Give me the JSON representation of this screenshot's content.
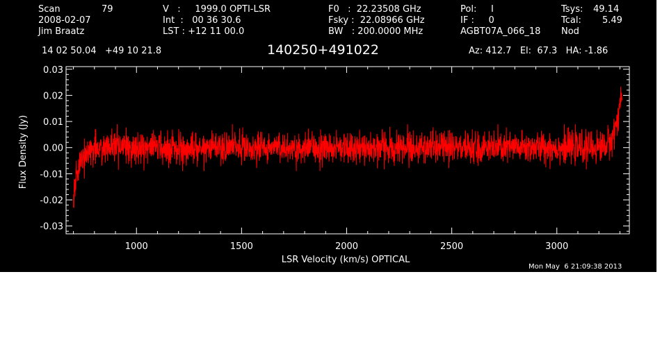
{
  "header": {
    "scan_label": "Scan",
    "scan_number": "79",
    "date": "2008-02-07",
    "observer": "Jim Braatz",
    "velocity_line": "V   :     1999.0 OPTI-LSR",
    "int_line": "Int  :   00 36 30.6",
    "lst_line": "LST : +12 11 00.0",
    "f0_line": "F0   :  22.23508 GHz",
    "fsky_line": "Fsky :  22.08966 GHz",
    "bw_line": "BW   : 200.0000 MHz",
    "pol_line": "Pol:     I",
    "if_line": "IF :     0",
    "project": "AGBT07A_066_18",
    "tsys_label": "Tsys:",
    "tsys_value": "49.14",
    "tcal_label": "Tcal:",
    "tcal_value": "5.49",
    "mode": "Nod",
    "ra_dec": "14 02 50.04   +49 10 21.8",
    "source": "140250+491022",
    "pointing": "Az: 412.7   El:  67.3   HA: -1.86"
  },
  "footer": {
    "timestamp": "Mon May  6 21:09:38 2013"
  },
  "colors": {
    "background": "#000000",
    "axes": "#ffffff",
    "spectrum": "#ff0000"
  },
  "chart_data": {
    "type": "line",
    "title": "140250+491022",
    "xlabel": "LSR Velocity (km/s) OPTICAL",
    "ylabel": "Flux Density (Jy)",
    "xlim": [
      665,
      3345
    ],
    "ylim": [
      -0.033,
      0.031
    ],
    "xticks": [
      1000,
      1500,
      2000,
      2500,
      3000
    ],
    "xtick_labels": [
      "1000",
      "1500",
      "2000",
      "2500",
      "3000"
    ],
    "yticks": [
      -0.03,
      -0.02,
      -0.01,
      0.0,
      0.01,
      0.02,
      0.03
    ],
    "ytick_labels": [
      "-0.03",
      "-0.02",
      "-0.01",
      "0.00",
      "0.01",
      "0.02",
      "0.03"
    ],
    "grid": false,
    "series": [
      {
        "color": "#ff0000",
        "x": [
          700,
          705,
          710,
          715,
          720,
          730,
          740,
          750,
          765,
          780,
          800,
          850,
          900,
          950,
          1000,
          1100,
          1200,
          1300,
          1400,
          1500,
          1600,
          1700,
          1800,
          1900,
          2000,
          2100,
          2200,
          2300,
          2400,
          2500,
          2600,
          2700,
          2800,
          2900,
          3000,
          3050,
          3100,
          3150,
          3200,
          3230,
          3250,
          3265,
          3280,
          3290,
          3300,
          3310
        ],
        "y": [
          -0.022,
          -0.018,
          -0.014,
          -0.01,
          -0.008,
          -0.006,
          -0.004,
          -0.003,
          -0.002,
          -0.001,
          0.0,
          0.0,
          0.0,
          0.0,
          0.0,
          0.0,
          0.0,
          0.0,
          0.0,
          0.0,
          0.0,
          0.0,
          0.0,
          0.0,
          0.0,
          0.0,
          0.0,
          0.0,
          0.0,
          0.0,
          0.0,
          0.0,
          0.0,
          0.0,
          0.0,
          0.0,
          0.0,
          0.0,
          0.0,
          0.001,
          0.002,
          0.004,
          0.008,
          0.012,
          0.017,
          0.021
        ],
        "noise_rms_jy": 0.003,
        "noise_peak_jy": 0.009
      }
    ]
  }
}
